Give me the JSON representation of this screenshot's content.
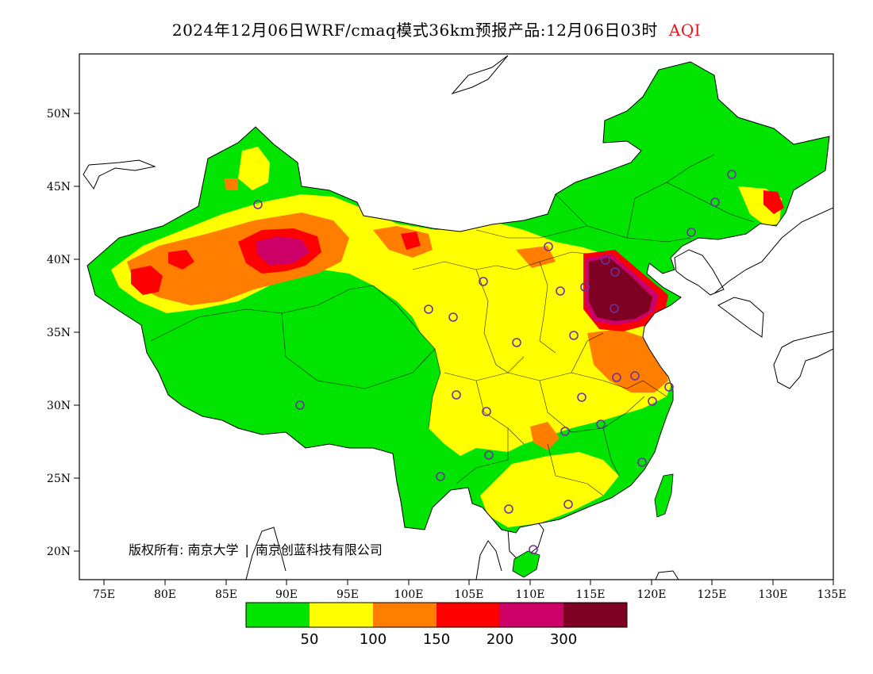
{
  "title": {
    "main": "2024年12月06日WRF/cmaq模式36km预报产品:12月06日03时",
    "variable": "AQI"
  },
  "copyright": {
    "owner_label": "版权所有:",
    "university": "南京大学",
    "company": "南京创蓝科技有限公司"
  },
  "axes": {
    "lat_ticks": [
      "50N",
      "45N",
      "40N",
      "35N",
      "30N",
      "25N",
      "20N"
    ],
    "lon_ticks": [
      "75E",
      "80E",
      "85E",
      "90E",
      "95E",
      "100E",
      "105E",
      "110E",
      "115E",
      "120E",
      "125E",
      "130E",
      "135E"
    ]
  },
  "legend": {
    "colors": [
      "#00e400",
      "#ffff00",
      "#ff7e00",
      "#ff0000",
      "#cc0066",
      "#7e0023"
    ],
    "labels": [
      "50",
      "100",
      "150",
      "200",
      "300"
    ]
  },
  "colors": {
    "good": "#00e400",
    "moderate": "#ffff00",
    "usg": "#ff7e00",
    "unhealthy": "#ff0000",
    "very_unhealthy": "#cc0066",
    "hazardous": "#7e0023",
    "station_marker": "#7030a0"
  }
}
